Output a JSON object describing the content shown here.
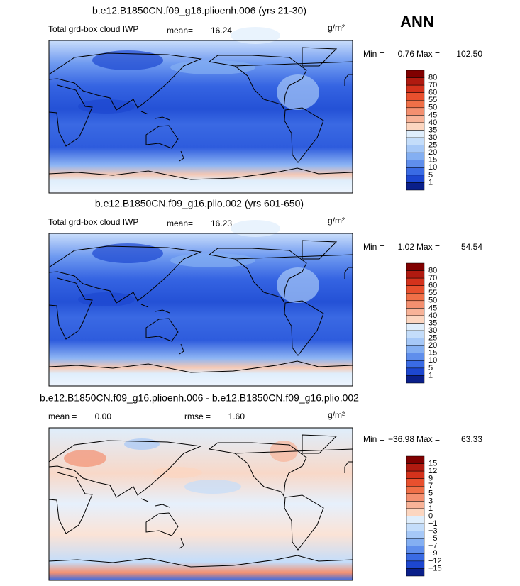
{
  "header": {
    "season": "ANN"
  },
  "panels": [
    {
      "title": "b.e12.B1850CN.f09_g16.plioenh.006 (yrs 21-30)",
      "variable": "Total grd-box cloud IWP",
      "mean_label": "mean=",
      "mean": "16.24",
      "units": "g/m²",
      "min_label": "Min =",
      "min": "0.76",
      "max_label": "Max =",
      "max": "102.50",
      "colorbar": {
        "labels": [
          "80",
          "70",
          "60",
          "55",
          "50",
          "45",
          "40",
          "35",
          "30",
          "25",
          "20",
          "15",
          "10",
          "5",
          "1"
        ],
        "colors": [
          "#800000",
          "#b01a10",
          "#d4321c",
          "#e8502e",
          "#f07048",
          "#f49070",
          "#f8b398",
          "#fcd6c0",
          "#dfeefc",
          "#c4ddfa",
          "#a6c8f7",
          "#84aff2",
          "#5f8eec",
          "#3a6be4",
          "#1d47d0",
          "#0a1f8a"
        ]
      }
    },
    {
      "title": "b.e12.B1850CN.f09_g16.plio.002 (yrs 601-650)",
      "variable": "Total grd-box cloud IWP",
      "mean_label": "mean=",
      "mean": "16.23",
      "units": "g/m²",
      "min_label": "Min =",
      "min": "1.02",
      "max_label": "Max =",
      "max": "54.54",
      "colorbar": {
        "labels": [
          "80",
          "70",
          "60",
          "55",
          "50",
          "45",
          "40",
          "35",
          "30",
          "25",
          "20",
          "15",
          "10",
          "5",
          "1"
        ],
        "colors": [
          "#800000",
          "#b01a10",
          "#d4321c",
          "#e8502e",
          "#f07048",
          "#f49070",
          "#f8b398",
          "#fcd6c0",
          "#dfeefc",
          "#c4ddfa",
          "#a6c8f7",
          "#84aff2",
          "#5f8eec",
          "#3a6be4",
          "#1d47d0",
          "#0a1f8a"
        ]
      }
    },
    {
      "title": "b.e12.B1850CN.f09_g16.plioenh.006 - b.e12.B1850CN.f09_g16.plio.002",
      "mean_label": "mean =",
      "mean": "0.00",
      "rmse_label": "rmse =",
      "rmse": "1.60",
      "units": "g/m²",
      "min_label": "Min =",
      "min": "−36.98",
      "max_label": "Max =",
      "max": "63.33",
      "colorbar": {
        "labels": [
          "15",
          "12",
          "9",
          "7",
          "5",
          "3",
          "1",
          "0",
          "−1",
          "−3",
          "−5",
          "−7",
          "−9",
          "−12",
          "−15"
        ],
        "colors": [
          "#800000",
          "#b01a10",
          "#d4321c",
          "#e8502e",
          "#f07048",
          "#f49070",
          "#f8b398",
          "#fcd6c0",
          "#dfeefc",
          "#c4ddfa",
          "#a6c8f7",
          "#84aff2",
          "#5f8eec",
          "#3a6be4",
          "#1d47d0",
          "#0a1f8a"
        ]
      }
    }
  ]
}
